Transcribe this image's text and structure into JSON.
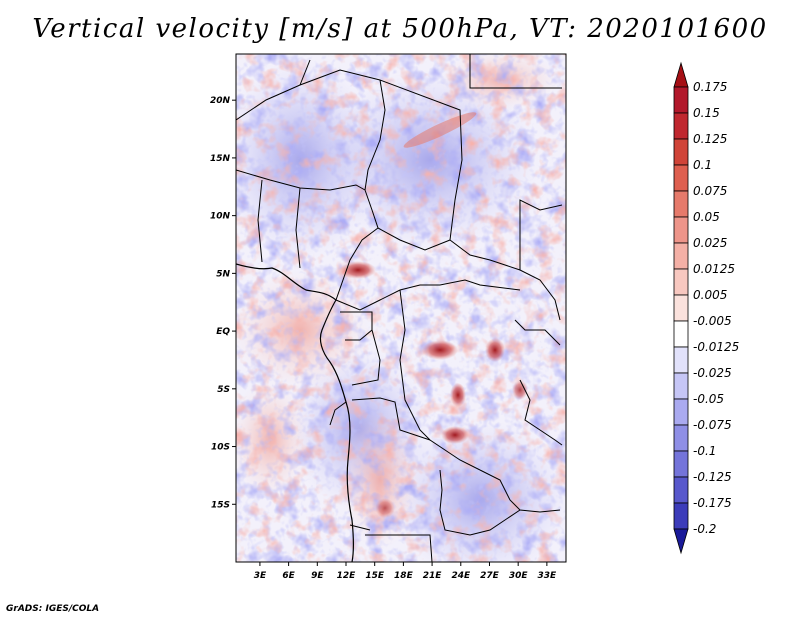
{
  "title": "Vertical velocity [m/s] at 500hPa, VT: 2020101600",
  "credit": "GrADS: IGES/COLA",
  "map": {
    "region": "Central Africa",
    "lon_range": [
      0.5,
      35
    ],
    "lat_range": [
      -20,
      24
    ],
    "lon_ticks": [
      {
        "value": 3,
        "label": "3E"
      },
      {
        "value": 6,
        "label": "6E"
      },
      {
        "value": 9,
        "label": "9E"
      },
      {
        "value": 12,
        "label": "12E"
      },
      {
        "value": 15,
        "label": "15E"
      },
      {
        "value": 18,
        "label": "18E"
      },
      {
        "value": 21,
        "label": "21E"
      },
      {
        "value": 24,
        "label": "24E"
      },
      {
        "value": 27,
        "label": "27E"
      },
      {
        "value": 30,
        "label": "30E"
      },
      {
        "value": 33,
        "label": "33E"
      }
    ],
    "lat_ticks": [
      {
        "value": 20,
        "label": "20N"
      },
      {
        "value": 15,
        "label": "15N"
      },
      {
        "value": 10,
        "label": "10N"
      },
      {
        "value": 5,
        "label": "5N"
      },
      {
        "value": 0,
        "label": "EQ"
      },
      {
        "value": -5,
        "label": "5S"
      },
      {
        "value": -10,
        "label": "10S"
      },
      {
        "value": -15,
        "label": "15S"
      }
    ]
  },
  "colorbar": {
    "levels": [
      {
        "label": "0.175",
        "color": "#b2182b"
      },
      {
        "label": "0.15",
        "color": "#c0272f"
      },
      {
        "label": "0.125",
        "color": "#d04438"
      },
      {
        "label": "0.1",
        "color": "#de5f4f"
      },
      {
        "label": "0.075",
        "color": "#e67a6b"
      },
      {
        "label": "0.05",
        "color": "#ee958a"
      },
      {
        "label": "0.025",
        "color": "#f4b0a6"
      },
      {
        "label": "0.0125",
        "color": "#f8c8c0"
      },
      {
        "label": "0.005",
        "color": "#fbe2dd"
      },
      {
        "label": "-0.005",
        "color": "#ffffff"
      },
      {
        "label": "-0.0125",
        "color": "#e2e2fb"
      },
      {
        "label": "-0.025",
        "color": "#c6c6f6"
      },
      {
        "label": "-0.05",
        "color": "#aaaaf0"
      },
      {
        "label": "-0.075",
        "color": "#8f8fe6"
      },
      {
        "label": "-0.1",
        "color": "#7474da"
      },
      {
        "label": "-0.125",
        "color": "#5858cc"
      },
      {
        "label": "-0.175",
        "color": "#3c3cba"
      },
      {
        "label": "-0.2",
        "color": "#2323a6"
      }
    ],
    "top_color": "#a50f15",
    "bottom_color": "#1a1a99"
  }
}
